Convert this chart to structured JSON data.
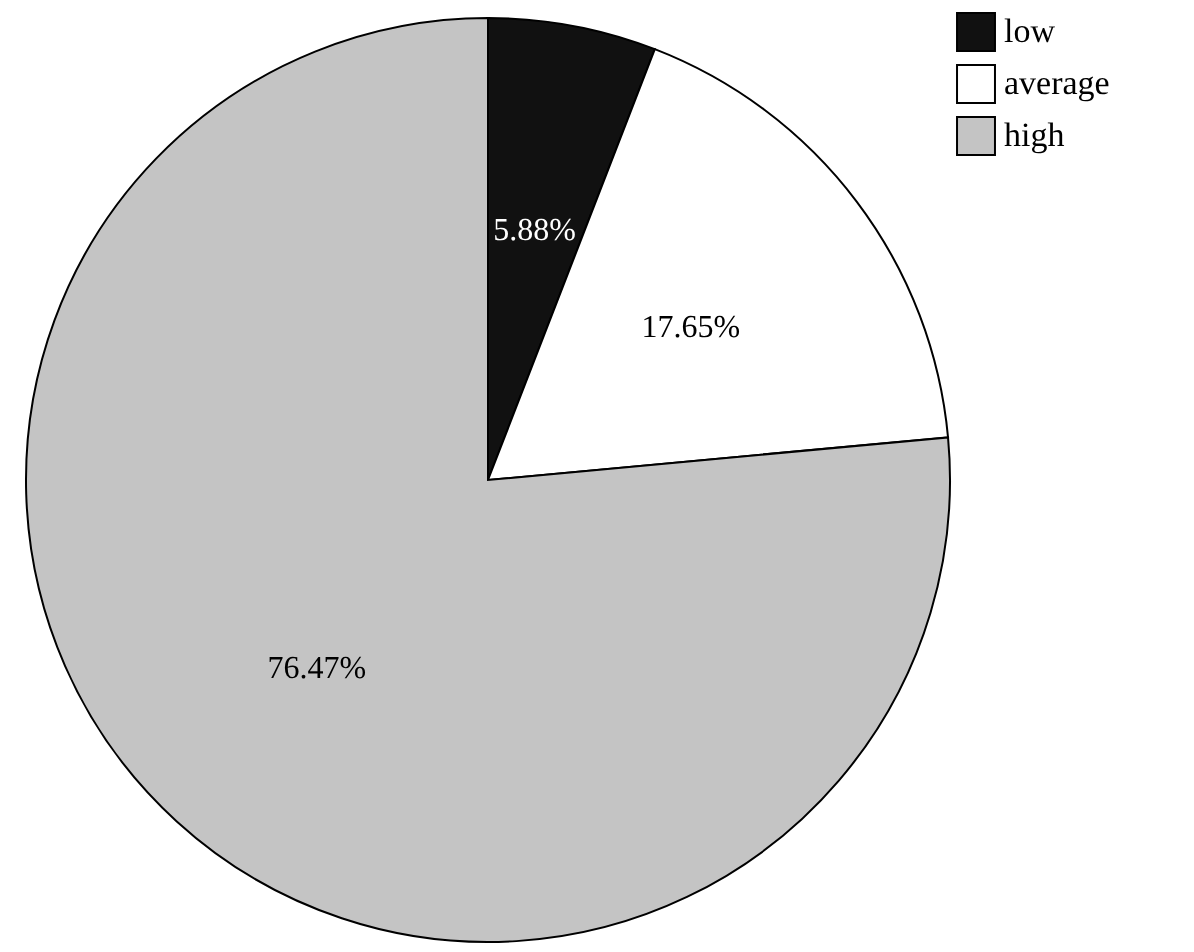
{
  "chart_data": {
    "type": "pie",
    "categories": [
      "low",
      "average",
      "high"
    ],
    "values": [
      5.88,
      17.65,
      76.47
    ],
    "colors": [
      "#111111",
      "#ffffff",
      "#c4c4c4"
    ],
    "value_labels": [
      "5.88%",
      "17.65%",
      "76.47%"
    ],
    "legend": "top right"
  }
}
